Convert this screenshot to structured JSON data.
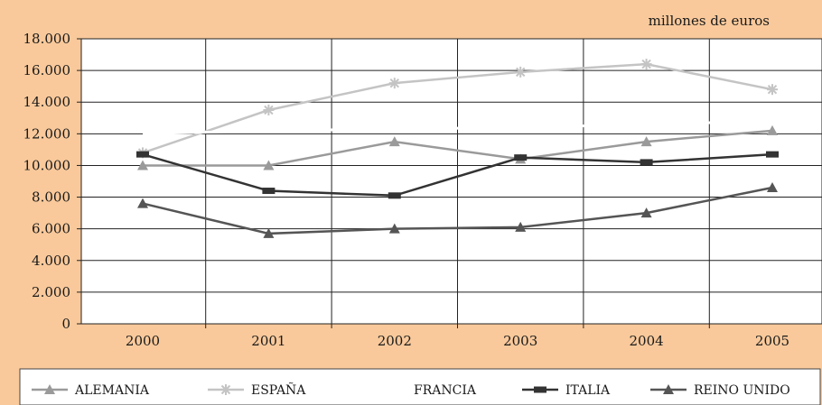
{
  "chart_data": {
    "type": "line",
    "unit_label": "millones de euros",
    "categories": [
      "2000",
      "2001",
      "2002",
      "2003",
      "2004",
      "2005"
    ],
    "y_ticks": [
      "0",
      "2.000",
      "4.000",
      "6.000",
      "8.000",
      "10.000",
      "12.000",
      "14.000",
      "16.000",
      "18.000"
    ],
    "ylim": [
      0,
      18000
    ],
    "grid": true,
    "legend_position": "bottom",
    "series": [
      {
        "name": "ALEMANIA",
        "values": [
          10000,
          10000,
          11500,
          10400,
          11500,
          12200
        ],
        "color": "#9a9a9a",
        "marker": "triangle"
      },
      {
        "name": "ESPAÑA",
        "values": [
          10800,
          13500,
          15200,
          15900,
          16400,
          14800
        ],
        "color": "#c4c4c4",
        "marker": "asterisk"
      },
      {
        "name": "FRANCIA",
        "values": [
          12000,
          12200,
          12300,
          12400,
          12600,
          12800
        ],
        "color": "#ffffff",
        "marker": "none"
      },
      {
        "name": "ITALIA",
        "values": [
          10700,
          8400,
          8100,
          10500,
          10200,
          10700
        ],
        "color": "#333333",
        "marker": "square"
      },
      {
        "name": "REINO UNIDO",
        "values": [
          7600,
          5700,
          6000,
          6100,
          7000,
          8600
        ],
        "color": "#555555",
        "marker": "triangle"
      }
    ]
  }
}
